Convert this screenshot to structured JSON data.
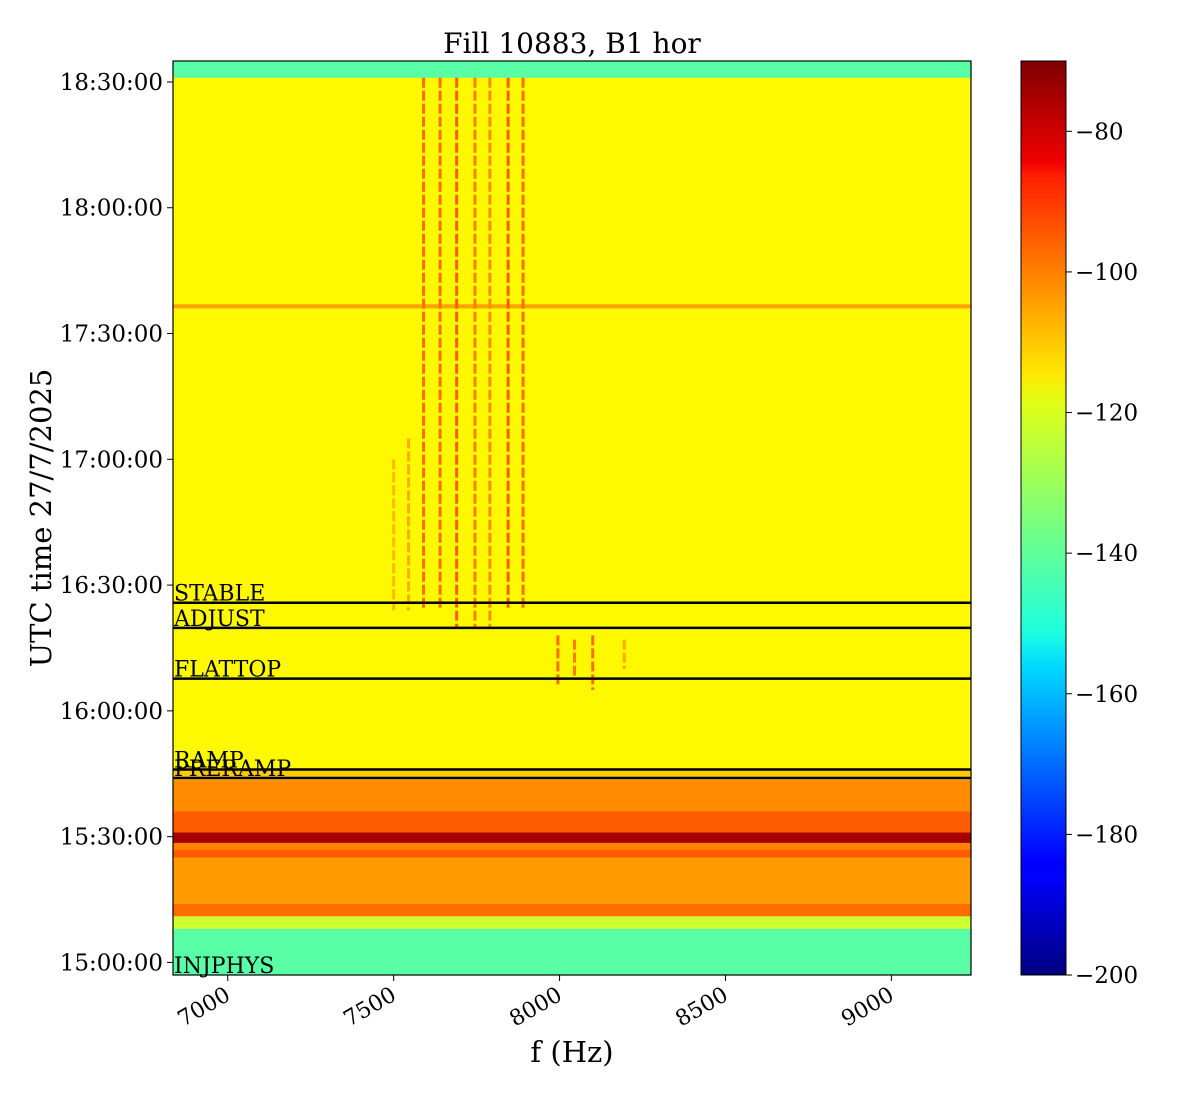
{
  "chart_data": {
    "type": "heatmap",
    "title": "Fill 10883, B1 hor",
    "xlabel": "f (Hz)",
    "ylabel": "UTC time 27/7/2025",
    "xlim": [
      6835,
      9240
    ],
    "x_ticks": [
      {
        "value": 7000,
        "label": "7000"
      },
      {
        "value": 7500,
        "label": "7500"
      },
      {
        "value": 8000,
        "label": "8000"
      },
      {
        "value": 8500,
        "label": "8500"
      },
      {
        "value": 9000,
        "label": "9000"
      }
    ],
    "ylim_minutes": [
      -3,
      115
    ],
    "y_ticks": [
      {
        "minutes": 0,
        "label": "15:00:00"
      },
      {
        "minutes": 30,
        "label": "15:30:00"
      },
      {
        "minutes": 60,
        "label": "16:00:00"
      },
      {
        "minutes": 90,
        "label": "16:30:00"
      },
      {
        "minutes": 120,
        "label": "17:00:00"
      },
      {
        "minutes": 150,
        "label": "17:30:00"
      },
      {
        "minutes": 180,
        "label": "18:00:00"
      },
      {
        "minutes": 210,
        "label": "18:30:00"
      }
    ],
    "time_range_minutes": [
      -3,
      215
    ],
    "colorbar": {
      "range": [
        -200,
        -70
      ],
      "ticks": [
        {
          "value": -80,
          "label": "−80"
        },
        {
          "value": -100,
          "label": "−100"
        },
        {
          "value": -120,
          "label": "−120"
        },
        {
          "value": -140,
          "label": "−140"
        },
        {
          "value": -160,
          "label": "−160"
        },
        {
          "value": -180,
          "label": "−180"
        },
        {
          "value": -200,
          "label": "−200"
        }
      ],
      "colormap": "jet"
    },
    "events": [
      {
        "name": "INJPHYS",
        "minutes": -3.5
      },
      {
        "name": "PRERAMP",
        "minutes": 44.0
      },
      {
        "name": "RAMP",
        "minutes": 46.0
      },
      {
        "name": "FLATTOP",
        "minutes": 67.7
      },
      {
        "name": "ADJUST",
        "minutes": 79.8
      },
      {
        "name": "STABLE",
        "minutes": 85.8
      }
    ],
    "time_bands": [
      {
        "from": -3,
        "to": 8,
        "level": -140
      },
      {
        "from": 8,
        "to": 11,
        "level": -125
      },
      {
        "from": 11,
        "to": 14,
        "level": -100
      },
      {
        "from": 14,
        "to": 25,
        "level": -106
      },
      {
        "from": 25,
        "to": 27,
        "level": -98
      },
      {
        "from": 27,
        "to": 28.5,
        "level": -103
      },
      {
        "from": 28.5,
        "to": 31,
        "level": -75
      },
      {
        "from": 31,
        "to": 36,
        "level": -98
      },
      {
        "from": 36,
        "to": 43.5,
        "level": -104
      },
      {
        "from": 43.5,
        "to": 46,
        "level": -112
      },
      {
        "from": 46,
        "to": 156,
        "level": -118
      },
      {
        "from": 156,
        "to": 157,
        "level": -107
      },
      {
        "from": 164,
        "to": 165,
        "level": -110
      },
      {
        "from": 157,
        "to": 211,
        "level": -118
      },
      {
        "from": 211,
        "to": 215,
        "level": -140
      }
    ],
    "lines": [
      {
        "f": 7590,
        "from": 84,
        "to": 211,
        "level": -100
      },
      {
        "f": 7640,
        "from": 84,
        "to": 211,
        "level": -100
      },
      {
        "f": 7690,
        "from": 80,
        "to": 211,
        "level": -98
      },
      {
        "f": 7745,
        "from": 80,
        "to": 211,
        "level": -102
      },
      {
        "f": 7790,
        "from": 80,
        "to": 211,
        "level": -104
      },
      {
        "f": 7845,
        "from": 84,
        "to": 211,
        "level": -98
      },
      {
        "f": 7890,
        "from": 84,
        "to": 211,
        "level": -100
      },
      {
        "f": 7545,
        "from": 84,
        "to": 125,
        "level": -108
      },
      {
        "f": 7500,
        "from": 84,
        "to": 120,
        "level": -110
      },
      {
        "f": 7995,
        "from": 66,
        "to": 78,
        "level": -100
      },
      {
        "f": 8045,
        "from": 68,
        "to": 77,
        "level": -102
      },
      {
        "f": 8100,
        "from": 65,
        "to": 78,
        "level": -100
      },
      {
        "f": 8195,
        "from": 70,
        "to": 77,
        "level": -108
      }
    ]
  }
}
